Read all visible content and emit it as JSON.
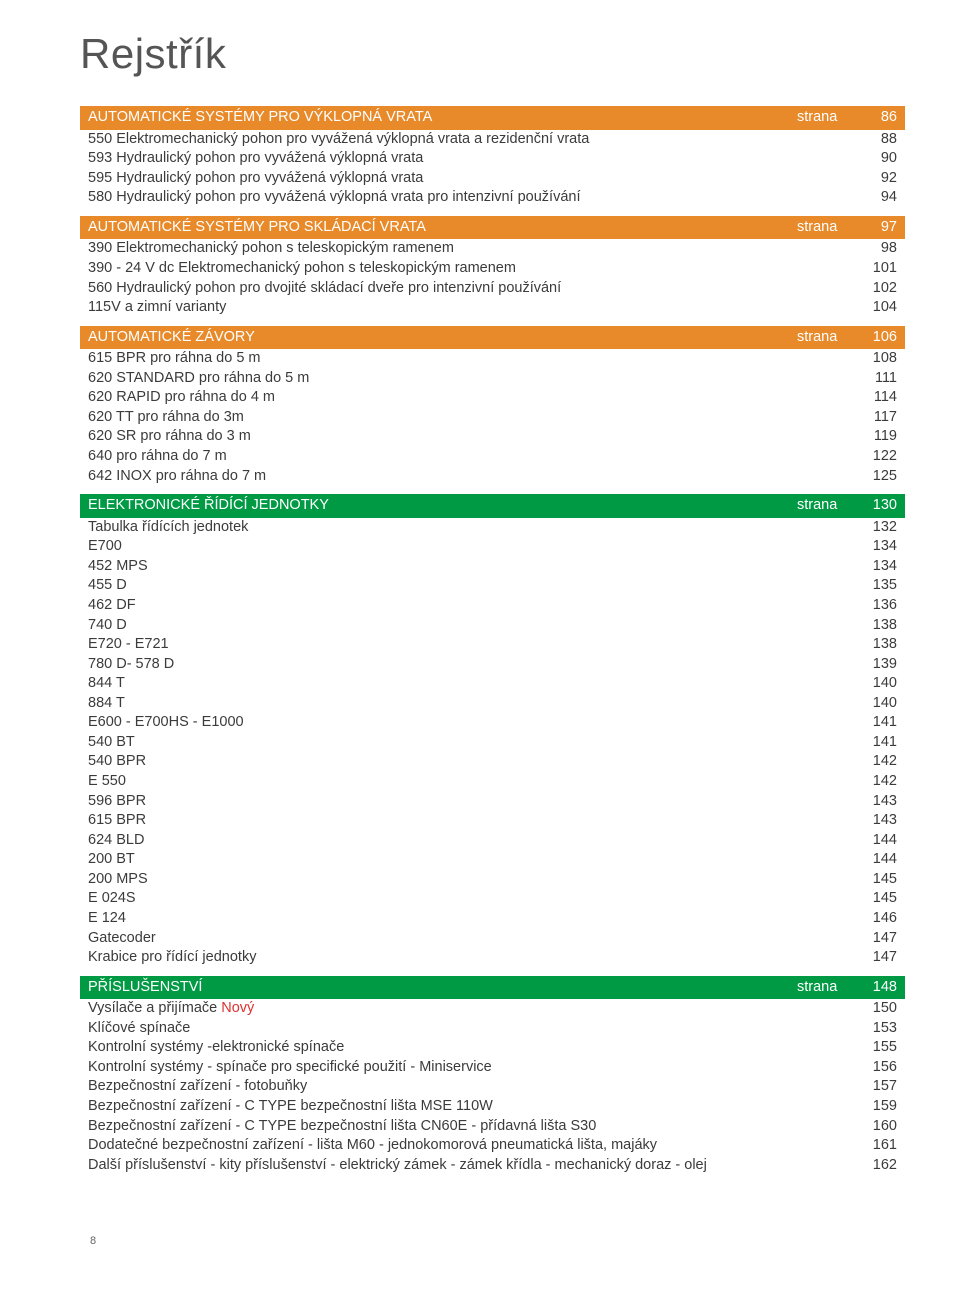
{
  "title": "Rejstřík",
  "strana_word": "strana",
  "sections": [
    {
      "header_color": "orange",
      "title": "AUTOMATICKÉ SYSTÉMY PRO VÝKLOPNÁ VRATA",
      "page": "86",
      "rows": [
        {
          "label": "550 Elektromechanický pohon pro vyvážená výklopná vrata a rezidenční vrata",
          "page": "88"
        },
        {
          "label": "593 Hydraulický pohon pro vyvážená výklopná vrata",
          "page": "90"
        },
        {
          "label": "595 Hydraulický pohon pro vyvážená výklopná vrata",
          "page": "92"
        },
        {
          "label": "580 Hydraulický pohon pro vyvážená výklopná vrata pro intenzivní používání",
          "page": "94"
        }
      ]
    },
    {
      "header_color": "orange",
      "title": "AUTOMATICKÉ SYSTÉMY PRO SKLÁDACÍ VRATA",
      "page": "97",
      "rows": [
        {
          "label": "390 Elektromechanický pohon s teleskopickým ramenem",
          "page": "98"
        },
        {
          "label": "390 - 24 V dc Elektromechanický pohon s teleskopickým ramenem",
          "page": "101"
        },
        {
          "label": "560 Hydraulický pohon pro dvojité skládací dveře pro intenzivní používání",
          "page": "102"
        },
        {
          "label": "115V a zimní varianty",
          "page": "104"
        }
      ]
    },
    {
      "header_color": "orange",
      "title": "AUTOMATICKÉ ZÁVORY",
      "page": "106",
      "rows": [
        {
          "label": "615 BPR pro ráhna do 5 m",
          "page": "108"
        },
        {
          "label": "620 STANDARD pro ráhna do 5 m",
          "page": "111"
        },
        {
          "label": "620 RAPID pro ráhna do 4 m",
          "page": "114"
        },
        {
          "label": "620 TT pro ráhna do 3m",
          "page": "117"
        },
        {
          "label": "620 SR pro ráhna do 3 m",
          "page": "119"
        },
        {
          "label": "640 pro ráhna do 7 m",
          "page": "122"
        },
        {
          "label": "642 INOX pro ráhna do 7 m",
          "page": "125"
        }
      ]
    },
    {
      "header_color": "green",
      "title": "ELEKTRONICKÉ ŘÍDÍCÍ JEDNOTKY",
      "page": "130",
      "rows": [
        {
          "label": "Tabulka řídících jednotek",
          "page": "132"
        },
        {
          "label": "E700",
          "page": "134"
        },
        {
          "label": "452 MPS",
          "page": "134"
        },
        {
          "label": "455 D",
          "page": "135"
        },
        {
          "label": "462 DF",
          "page": "136"
        },
        {
          "label": "740 D",
          "page": "138"
        },
        {
          "label": "E720 - E721",
          "page": "138"
        },
        {
          "label": "780 D- 578 D",
          "page": "139"
        },
        {
          "label": "844 T",
          "page": "140"
        },
        {
          "label": "884 T",
          "page": "140"
        },
        {
          "label": "E600 - E700HS - E1000",
          "page": "141"
        },
        {
          "label": "540 BT",
          "page": "141"
        },
        {
          "label": "540 BPR",
          "page": "142"
        },
        {
          "label": "E 550",
          "page": "142"
        },
        {
          "label": "596 BPR",
          "page": "143"
        },
        {
          "label": "615 BPR",
          "page": "143"
        },
        {
          "label": "624 BLD",
          "page": "144"
        },
        {
          "label": "200 BT",
          "page": "144"
        },
        {
          "label": "200 MPS",
          "page": "145"
        },
        {
          "label": "E 024S",
          "page": "145"
        },
        {
          "label": "E 124",
          "page": "146"
        },
        {
          "label": "Gatecoder",
          "page": "147"
        },
        {
          "label": "Krabice pro řídící jednotky",
          "page": "147"
        }
      ]
    },
    {
      "header_color": "green",
      "title": "PŘÍSLUŠENSTVÍ",
      "page": "148",
      "rows": [
        {
          "label": "Vysílače a přijímače",
          "novy": "Nový",
          "page": "150"
        },
        {
          "label": "Klíčové spínače",
          "page": "153"
        },
        {
          "label": "Kontrolní systémy -elektronické spínače",
          "page": "155"
        },
        {
          "label": "Kontrolní systémy - spínače pro specifické použití - Miniservice",
          "page": "156"
        },
        {
          "label": "Bezpečnostní zařízení - fotobuňky",
          "page": "157"
        },
        {
          "label": "Bezpečnostní zařízení - C TYPE bezpečnostní lišta MSE 110W",
          "page": "159"
        },
        {
          "label": "Bezpečnostní zařízení - C TYPE bezpečnostní lišta CN60E - přídavná lišta S30",
          "page": "160"
        },
        {
          "label": "Dodatečné bezpečnostní zařízení - lišta M60 - jednokomorová pneumatická lišta, majáky",
          "page": "161"
        },
        {
          "label": "Další příslušenství - kity příslušenství - elektrický zámek - zámek křídla - mechanický doraz - olej",
          "page": "162"
        }
      ]
    }
  ],
  "footer_page_number": "8"
}
